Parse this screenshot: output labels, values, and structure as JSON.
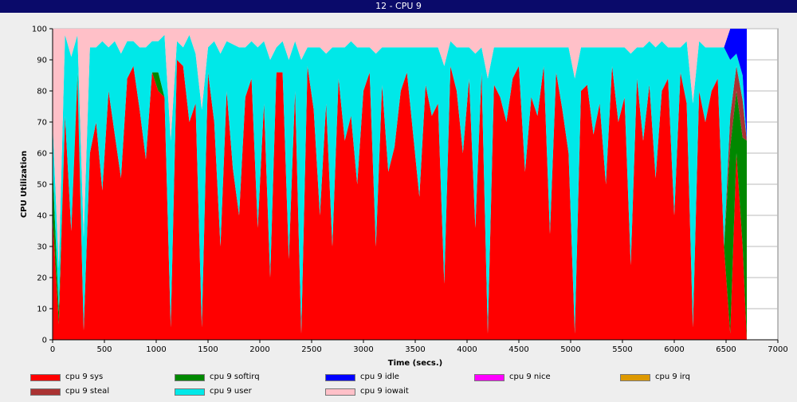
{
  "window": {
    "title": "12 - CPU 9"
  },
  "chart_data": {
    "type": "area",
    "title": "12 - CPU 9",
    "xlabel": "Time (secs.)",
    "ylabel": "CPU Utilization",
    "xlim": [
      0,
      7000
    ],
    "ylim": [
      0,
      100
    ],
    "x_ticks": [
      "0",
      "500",
      "1000",
      "1500",
      "2000",
      "2500",
      "3000",
      "3500",
      "4000",
      "4500",
      "5000",
      "5500",
      "6000",
      "6500",
      "7000"
    ],
    "y_ticks": [
      "0",
      "10",
      "20",
      "30",
      "40",
      "50",
      "60",
      "70",
      "80",
      "90",
      "100"
    ],
    "grid": "horizontal",
    "legend_placement": "bottom",
    "stack_order": [
      "sys",
      "softirq",
      "steal",
      "user",
      "idle",
      "iowait"
    ],
    "series": [
      {
        "name": "cpu 9 sys",
        "color": "#ff0000"
      },
      {
        "name": "cpu 9 softirq",
        "color": "#008800"
      },
      {
        "name": "cpu 9 idle",
        "color": "#0000ff"
      },
      {
        "name": "cpu 9 nice",
        "color": "#ff00ff"
      },
      {
        "name": "cpu 9 irq",
        "color": "#dd9900"
      },
      {
        "name": "cpu 9 steal",
        "color": "#aa3333"
      },
      {
        "name": "cpu 9 user",
        "color": "#00e8e8"
      },
      {
        "name": "cpu 9 iowait",
        "color": "#ffc0c8"
      }
    ],
    "x": [
      0,
      60,
      120,
      180,
      240,
      300,
      360,
      420,
      480,
      540,
      600,
      660,
      720,
      780,
      840,
      900,
      960,
      1020,
      1080,
      1140,
      1200,
      1260,
      1320,
      1380,
      1440,
      1500,
      1560,
      1620,
      1680,
      1740,
      1800,
      1860,
      1920,
      1980,
      2040,
      2100,
      2160,
      2220,
      2280,
      2340,
      2400,
      2460,
      2520,
      2580,
      2640,
      2700,
      2760,
      2820,
      2880,
      2940,
      3000,
      3060,
      3120,
      3180,
      3240,
      3300,
      3360,
      3420,
      3480,
      3540,
      3600,
      3660,
      3720,
      3780,
      3840,
      3900,
      3960,
      4020,
      4080,
      4140,
      4200,
      4260,
      4320,
      4380,
      4440,
      4500,
      4560,
      4620,
      4680,
      4740,
      4800,
      4860,
      4920,
      4980,
      5040,
      5100,
      5160,
      5220,
      5280,
      5340,
      5400,
      5460,
      5520,
      5580,
      5640,
      5700,
      5760,
      5820,
      5880,
      5940,
      6000,
      6060,
      6120,
      6180,
      6240,
      6300,
      6360,
      6420,
      6480,
      6540,
      6600,
      6660,
      6700
    ],
    "values": {
      "sys": [
        40,
        5,
        72,
        35,
        84,
        3,
        60,
        70,
        48,
        80,
        66,
        52,
        84,
        88,
        74,
        58,
        86,
        80,
        78,
        4,
        90,
        88,
        70,
        76,
        4,
        86,
        70,
        30,
        80,
        55,
        40,
        78,
        84,
        36,
        76,
        20,
        86,
        86,
        26,
        80,
        2,
        88,
        74,
        40,
        76,
        30,
        84,
        64,
        72,
        50,
        80,
        86,
        30,
        82,
        54,
        62,
        80,
        86,
        66,
        46,
        82,
        72,
        76,
        18,
        88,
        80,
        60,
        84,
        36,
        86,
        2,
        82,
        78,
        70,
        84,
        88,
        54,
        78,
        72,
        88,
        34,
        86,
        74,
        60,
        2,
        80,
        82,
        66,
        76,
        50,
        88,
        70,
        78,
        24,
        84,
        64,
        82,
        52,
        80,
        84,
        40,
        86,
        76,
        4,
        80,
        70,
        80,
        84,
        30,
        2,
        60,
        30,
        0
      ],
      "softirq": [
        16,
        4,
        0,
        0,
        2,
        0,
        0,
        0,
        0,
        0,
        0,
        0,
        0,
        0,
        0,
        0,
        0,
        6,
        0,
        0,
        0,
        0,
        0,
        0,
        0,
        0,
        0,
        0,
        0,
        0,
        0,
        0,
        0,
        0,
        0,
        0,
        0,
        0,
        0,
        0,
        0,
        0,
        0,
        0,
        0,
        0,
        0,
        0,
        0,
        0,
        0,
        0,
        0,
        0,
        0,
        0,
        0,
        0,
        0,
        0,
        0,
        0,
        0,
        0,
        0,
        0,
        0,
        0,
        0,
        0,
        0,
        0,
        0,
        0,
        0,
        0,
        0,
        0,
        0,
        0,
        0,
        0,
        0,
        0,
        0,
        0,
        0,
        0,
        0,
        0,
        0,
        0,
        0,
        0,
        0,
        0,
        0,
        0,
        0,
        0,
        0,
        0,
        0,
        0,
        0,
        0,
        0,
        0,
        0,
        60,
        20,
        35,
        64
      ],
      "steal": [
        0,
        0,
        0,
        0,
        0,
        0,
        0,
        0,
        0,
        0,
        0,
        0,
        0,
        0,
        0,
        0,
        0,
        0,
        0,
        0,
        0,
        0,
        0,
        0,
        0,
        0,
        0,
        0,
        0,
        0,
        0,
        0,
        0,
        0,
        0,
        0,
        0,
        0,
        0,
        0,
        0,
        0,
        0,
        0,
        0,
        0,
        0,
        0,
        0,
        0,
        0,
        0,
        0,
        0,
        0,
        0,
        0,
        0,
        0,
        0,
        0,
        0,
        0,
        0,
        0,
        0,
        0,
        0,
        0,
        0,
        0,
        0,
        0,
        0,
        0,
        0,
        0,
        0,
        0,
        0,
        0,
        0,
        0,
        0,
        0,
        0,
        0,
        0,
        0,
        0,
        0,
        0,
        0,
        0,
        0,
        0,
        0,
        0,
        0,
        0,
        0,
        0,
        0,
        0,
        0,
        0,
        0,
        0,
        0,
        10,
        8,
        12,
        0
      ],
      "user": [
        14,
        14,
        26,
        56,
        12,
        30,
        34,
        24,
        48,
        14,
        30,
        40,
        12,
        8,
        20,
        36,
        10,
        10,
        20,
        60,
        6,
        6,
        28,
        16,
        70,
        8,
        26,
        62,
        16,
        40,
        54,
        16,
        12,
        58,
        20,
        70,
        8,
        10,
        64,
        16,
        88,
        6,
        20,
        54,
        16,
        64,
        10,
        30,
        24,
        44,
        14,
        8,
        62,
        12,
        40,
        32,
        14,
        8,
        28,
        48,
        12,
        22,
        18,
        70,
        8,
        14,
        34,
        10,
        56,
        8,
        82,
        12,
        16,
        24,
        10,
        6,
        40,
        16,
        22,
        6,
        60,
        8,
        20,
        34,
        82,
        14,
        12,
        28,
        18,
        44,
        6,
        24,
        16,
        68,
        10,
        30,
        14,
        42,
        16,
        10,
        54,
        8,
        20,
        72,
        16,
        24,
        14,
        10,
        64,
        18,
        4,
        8,
        0
      ],
      "idle": [
        0,
        0,
        0,
        0,
        0,
        0,
        0,
        0,
        0,
        0,
        0,
        0,
        0,
        0,
        0,
        0,
        0,
        0,
        0,
        0,
        0,
        0,
        0,
        0,
        0,
        0,
        0,
        0,
        0,
        0,
        0,
        0,
        0,
        0,
        0,
        0,
        0,
        0,
        0,
        0,
        0,
        0,
        0,
        0,
        0,
        0,
        0,
        0,
        0,
        0,
        0,
        0,
        0,
        0,
        0,
        0,
        0,
        0,
        0,
        0,
        0,
        0,
        0,
        0,
        0,
        0,
        0,
        0,
        0,
        0,
        0,
        0,
        0,
        0,
        0,
        0,
        0,
        0,
        0,
        0,
        0,
        0,
        0,
        0,
        0,
        0,
        0,
        0,
        0,
        0,
        0,
        0,
        0,
        0,
        0,
        0,
        0,
        0,
        0,
        0,
        0,
        0,
        0,
        0,
        0,
        0,
        0,
        0,
        0,
        12,
        68,
        45,
        36
      ],
      "iowait": [
        30,
        77,
        2,
        9,
        2,
        67,
        6,
        6,
        4,
        6,
        4,
        8,
        4,
        4,
        6,
        6,
        4,
        4,
        2,
        36,
        4,
        6,
        2,
        8,
        26,
        6,
        4,
        8,
        4,
        5,
        6,
        6,
        4,
        6,
        4,
        10,
        6,
        4,
        10,
        4,
        10,
        6,
        6,
        6,
        8,
        6,
        6,
        6,
        4,
        6,
        6,
        6,
        8,
        6,
        6,
        6,
        6,
        6,
        6,
        6,
        6,
        6,
        6,
        12,
        4,
        6,
        6,
        6,
        8,
        6,
        16,
        6,
        6,
        6,
        6,
        6,
        6,
        6,
        6,
        6,
        6,
        6,
        6,
        6,
        16,
        6,
        6,
        6,
        6,
        6,
        6,
        6,
        6,
        8,
        6,
        6,
        4,
        6,
        4,
        6,
        6,
        6,
        4,
        24,
        4,
        6,
        6,
        6,
        6,
        0,
        0,
        0,
        0
      ]
    }
  }
}
